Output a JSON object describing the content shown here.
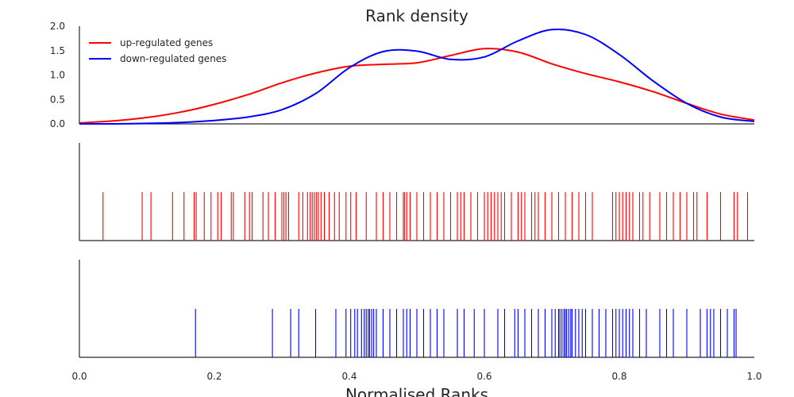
{
  "chart_data": {
    "type": "line",
    "title": "Rank density",
    "xlabel": "Normalised Ranks",
    "ylabel": "",
    "xlim": [
      0.0,
      1.0
    ],
    "ylim": [
      0.0,
      2.0
    ],
    "x_ticks": [
      "0.0",
      "0.2",
      "0.4",
      "0.6",
      "0.8",
      "1.0"
    ],
    "y_ticks": [
      "0.0",
      "0.5",
      "1.0",
      "1.5",
      "2.0"
    ],
    "grid": false,
    "legend_position": "top-left",
    "series": [
      {
        "name": "up-regulated genes",
        "color": "#ff0000",
        "x": [
          0.0,
          0.05,
          0.1,
          0.15,
          0.2,
          0.25,
          0.3,
          0.35,
          0.4,
          0.45,
          0.5,
          0.55,
          0.6,
          0.65,
          0.7,
          0.75,
          0.8,
          0.85,
          0.9,
          0.95,
          1.0
        ],
        "y": [
          0.02,
          0.06,
          0.13,
          0.24,
          0.4,
          0.6,
          0.84,
          1.04,
          1.18,
          1.22,
          1.25,
          1.4,
          1.54,
          1.47,
          1.23,
          1.03,
          0.86,
          0.66,
          0.42,
          0.2,
          0.08
        ]
      },
      {
        "name": "down-regulated genes",
        "color": "#0000ff",
        "x": [
          0.0,
          0.05,
          0.1,
          0.15,
          0.2,
          0.25,
          0.3,
          0.35,
          0.4,
          0.45,
          0.5,
          0.55,
          0.6,
          0.65,
          0.7,
          0.75,
          0.8,
          0.85,
          0.9,
          0.95,
          1.0
        ],
        "y": [
          0.0,
          0.0,
          0.01,
          0.03,
          0.07,
          0.14,
          0.29,
          0.62,
          1.15,
          1.48,
          1.49,
          1.32,
          1.37,
          1.7,
          1.93,
          1.83,
          1.42,
          0.88,
          0.42,
          0.14,
          0.05
        ]
      }
    ],
    "rug_up": [
      0.035,
      0.093,
      0.106,
      0.138,
      0.155,
      0.17,
      0.173,
      0.185,
      0.195,
      0.205,
      0.21,
      0.225,
      0.228,
      0.245,
      0.252,
      0.256,
      0.272,
      0.28,
      0.29,
      0.3,
      0.303,
      0.306,
      0.31,
      0.325,
      0.331,
      0.338,
      0.342,
      0.345,
      0.348,
      0.351,
      0.354,
      0.358,
      0.363,
      0.37,
      0.378,
      0.385,
      0.395,
      0.402,
      0.41,
      0.425,
      0.44,
      0.45,
      0.46,
      0.47,
      0.48,
      0.482,
      0.485,
      0.49,
      0.5,
      0.51,
      0.52,
      0.53,
      0.54,
      0.55,
      0.56,
      0.565,
      0.57,
      0.58,
      0.59,
      0.6,
      0.605,
      0.61,
      0.615,
      0.62,
      0.625,
      0.63,
      0.64,
      0.65,
      0.655,
      0.66,
      0.67,
      0.675,
      0.68,
      0.69,
      0.7,
      0.71,
      0.72,
      0.73,
      0.74,
      0.75,
      0.76,
      0.79,
      0.795,
      0.8,
      0.805,
      0.81,
      0.815,
      0.82,
      0.83,
      0.835,
      0.845,
      0.86,
      0.87,
      0.88,
      0.89,
      0.9,
      0.91,
      0.915,
      0.93,
      0.95,
      0.97,
      0.975,
      0.99
    ],
    "rug_down": [
      0.172,
      0.286,
      0.313,
      0.325,
      0.35,
      0.38,
      0.395,
      0.402,
      0.408,
      0.412,
      0.418,
      0.422,
      0.425,
      0.428,
      0.43,
      0.433,
      0.436,
      0.44,
      0.45,
      0.46,
      0.47,
      0.48,
      0.485,
      0.49,
      0.5,
      0.51,
      0.52,
      0.53,
      0.54,
      0.56,
      0.57,
      0.585,
      0.6,
      0.62,
      0.63,
      0.645,
      0.65,
      0.66,
      0.67,
      0.68,
      0.69,
      0.7,
      0.705,
      0.71,
      0.712,
      0.715,
      0.718,
      0.72,
      0.722,
      0.725,
      0.728,
      0.73,
      0.735,
      0.74,
      0.745,
      0.75,
      0.76,
      0.77,
      0.78,
      0.79,
      0.795,
      0.8,
      0.805,
      0.81,
      0.815,
      0.82,
      0.83,
      0.84,
      0.86,
      0.87,
      0.88,
      0.9,
      0.92,
      0.93,
      0.935,
      0.94,
      0.95,
      0.96,
      0.97,
      0.973
    ],
    "up_color": "#ff0000",
    "down_color": "#0000ff"
  }
}
